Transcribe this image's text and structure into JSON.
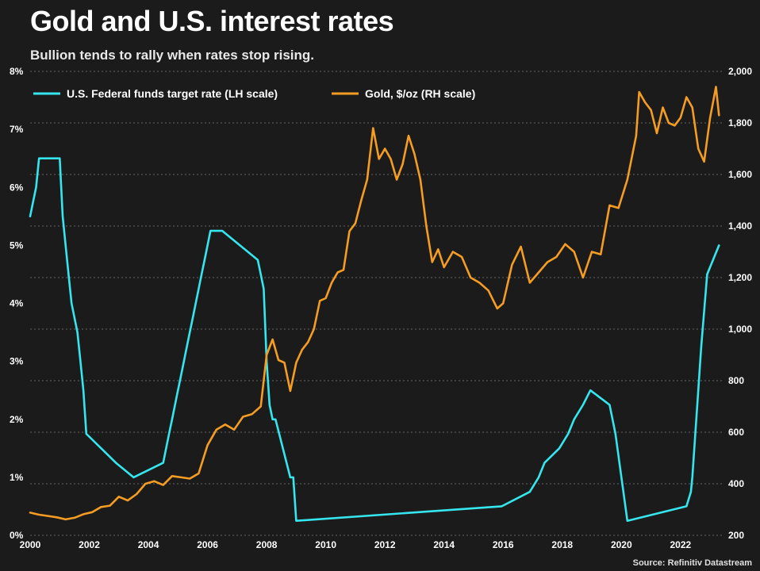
{
  "header": {
    "title": "Gold and U.S. interest rates",
    "subtitle": "Bullion tends to rally when rates stop rising."
  },
  "footer": {
    "source": "Source: Refinitiv Datastream"
  },
  "colors": {
    "background": "#1b1b1b",
    "fed": "#35e6ee",
    "gold": "#f59c22",
    "grid": "#666666"
  },
  "chart_data": {
    "type": "line",
    "title": "Gold and U.S. interest rates",
    "subtitle": "Bullion tends to rally when rates stop rising.",
    "x_range": [
      2000,
      2023.4
    ],
    "x_ticks": [
      2000,
      2002,
      2004,
      2006,
      2008,
      2010,
      2012,
      2014,
      2016,
      2018,
      2020,
      2022
    ],
    "x_tick_labels": [
      "2000",
      "2002",
      "2004",
      "2006",
      "2008",
      "2010",
      "2012",
      "2014",
      "2016",
      "2018",
      "2020",
      "2022"
    ],
    "y_left": {
      "range": [
        0,
        8
      ],
      "ticks": [
        0,
        1,
        2,
        3,
        4,
        5,
        6,
        7,
        8
      ],
      "tick_labels": [
        "0%",
        "1%",
        "2%",
        "3%",
        "4%",
        "5%",
        "6%",
        "7%",
        "8%"
      ]
    },
    "y_right": {
      "range": [
        200,
        2000
      ],
      "ticks": [
        200,
        400,
        600,
        800,
        1000,
        1200,
        1400,
        1600,
        1800,
        2000
      ],
      "tick_labels": [
        "200",
        "400",
        "600",
        "800",
        "1,000",
        "1,200",
        "1,400",
        "1,600",
        "1,800",
        "2,000"
      ]
    },
    "grid": "horizontal dotted",
    "legend_position": "top-left",
    "series": [
      {
        "name": "U.S. Federal funds target rate (LH scale)",
        "axis": "left",
        "step": true,
        "x": [
          2000.0,
          2000.1,
          2000.2,
          2000.3,
          2000.4,
          2001.0,
          2001.1,
          2001.2,
          2001.3,
          2001.4,
          2001.5,
          2001.6,
          2001.7,
          2001.8,
          2001.9,
          2002.9,
          2003.5,
          2004.5,
          2004.6,
          2004.7,
          2004.8,
          2004.9,
          2005.0,
          2005.1,
          2005.2,
          2005.3,
          2005.4,
          2005.5,
          2005.6,
          2005.7,
          2005.8,
          2005.9,
          2006.0,
          2006.1,
          2006.2,
          2006.3,
          2006.4,
          2006.5,
          2007.7,
          2007.8,
          2007.9,
          2008.0,
          2008.1,
          2008.2,
          2008.3,
          2008.8,
          2008.9,
          2009.0,
          2015.95,
          2016.9,
          2017.2,
          2017.4,
          2017.9,
          2018.2,
          2018.4,
          2018.7,
          2018.95,
          2019.6,
          2019.7,
          2019.8,
          2020.2,
          2022.2,
          2022.35,
          2022.4,
          2022.6,
          2022.7,
          2022.9,
          2023.1,
          2023.3
        ],
        "values": [
          5.5,
          5.75,
          6.0,
          6.5,
          6.5,
          6.5,
          5.5,
          5.0,
          4.5,
          4.0,
          3.75,
          3.5,
          3.0,
          2.5,
          1.75,
          1.25,
          1.0,
          1.25,
          1.5,
          1.75,
          2.0,
          2.25,
          2.5,
          2.75,
          3.0,
          3.25,
          3.5,
          3.75,
          4.0,
          4.25,
          4.5,
          4.75,
          5.0,
          5.25,
          5.25,
          5.25,
          5.25,
          5.25,
          4.75,
          4.5,
          4.25,
          3.0,
          2.25,
          2.0,
          2.0,
          1.0,
          1.0,
          0.25,
          0.5,
          0.75,
          1.0,
          1.25,
          1.5,
          1.75,
          2.0,
          2.25,
          2.5,
          2.25,
          2.0,
          1.75,
          0.25,
          0.5,
          0.75,
          1.0,
          2.5,
          3.25,
          4.5,
          4.75,
          5.0
        ]
      },
      {
        "name": "Gold, $/oz (RH scale)",
        "axis": "right",
        "step": false,
        "x": [
          2000.0,
          2000.3,
          2000.6,
          2000.9,
          2001.2,
          2001.5,
          2001.8,
          2002.1,
          2002.4,
          2002.7,
          2003.0,
          2003.3,
          2003.6,
          2003.9,
          2004.2,
          2004.5,
          2004.8,
          2005.1,
          2005.4,
          2005.7,
          2006.0,
          2006.3,
          2006.6,
          2006.9,
          2007.2,
          2007.5,
          2007.8,
          2008.0,
          2008.2,
          2008.4,
          2008.6,
          2008.8,
          2009.0,
          2009.2,
          2009.4,
          2009.6,
          2009.8,
          2010.0,
          2010.2,
          2010.4,
          2010.6,
          2010.8,
          2011.0,
          2011.2,
          2011.4,
          2011.6,
          2011.8,
          2012.0,
          2012.2,
          2012.4,
          2012.6,
          2012.8,
          2013.0,
          2013.2,
          2013.4,
          2013.6,
          2013.8,
          2014.0,
          2014.3,
          2014.6,
          2014.9,
          2015.2,
          2015.5,
          2015.8,
          2016.0,
          2016.3,
          2016.6,
          2016.9,
          2017.2,
          2017.5,
          2017.8,
          2018.1,
          2018.4,
          2018.7,
          2019.0,
          2019.3,
          2019.6,
          2019.9,
          2020.2,
          2020.5,
          2020.6,
          2020.8,
          2021.0,
          2021.2,
          2021.4,
          2021.6,
          2021.8,
          2022.0,
          2022.2,
          2022.4,
          2022.6,
          2022.8,
          2023.0,
          2023.2,
          2023.3
        ],
        "values": [
          288,
          280,
          275,
          270,
          262,
          268,
          282,
          290,
          310,
          315,
          350,
          335,
          360,
          400,
          410,
          395,
          430,
          425,
          420,
          440,
          550,
          610,
          630,
          610,
          660,
          670,
          700,
          900,
          960,
          880,
          870,
          760,
          870,
          920,
          950,
          1000,
          1110,
          1120,
          1180,
          1220,
          1230,
          1380,
          1410,
          1500,
          1580,
          1780,
          1660,
          1700,
          1660,
          1580,
          1640,
          1750,
          1680,
          1580,
          1400,
          1260,
          1310,
          1240,
          1300,
          1280,
          1200,
          1180,
          1150,
          1080,
          1100,
          1250,
          1320,
          1180,
          1220,
          1260,
          1280,
          1330,
          1300,
          1200,
          1300,
          1290,
          1480,
          1470,
          1580,
          1750,
          1920,
          1880,
          1850,
          1760,
          1860,
          1800,
          1790,
          1820,
          1900,
          1860,
          1700,
          1650,
          1820,
          1940,
          1830
        ]
      }
    ]
  }
}
